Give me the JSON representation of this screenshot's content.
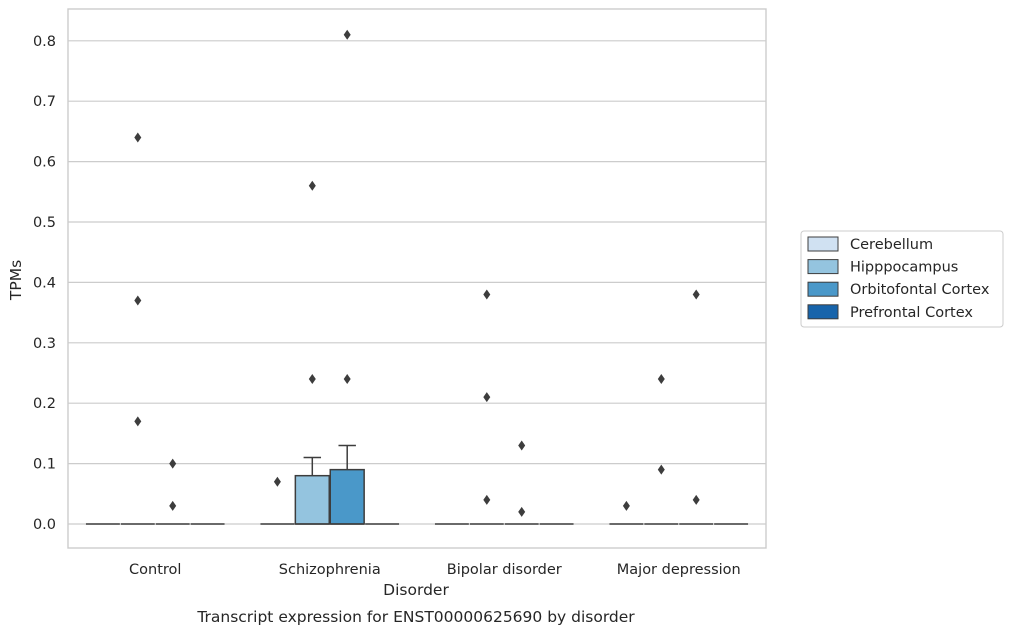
{
  "chart_data": {
    "type": "box",
    "title": "Transcript expression for ENST00000625690 by disorder",
    "xlabel": "Disorder",
    "ylabel": "TPMs",
    "ylim": [
      -0.04,
      0.85
    ],
    "yticks": [
      "0.0",
      "0.1",
      "0.2",
      "0.3",
      "0.4",
      "0.5",
      "0.6",
      "0.7",
      "0.8"
    ],
    "grid": "horizontal",
    "legend_position": "right",
    "categories": [
      "Control",
      "Schizophrenia",
      "Bipolar disorder",
      "Major depression"
    ],
    "series": [
      {
        "name": "Cerebellum",
        "color": "#d0e1f2",
        "boxes": [
          {
            "q1": 0,
            "median": 0,
            "q3": 0,
            "whisker_low": 0,
            "whisker_high": 0,
            "outliers": []
          },
          {
            "q1": 0,
            "median": 0,
            "q3": 0,
            "whisker_low": 0,
            "whisker_high": 0,
            "outliers": [
              0.07
            ]
          },
          {
            "q1": 0,
            "median": 0,
            "q3": 0,
            "whisker_low": 0,
            "whisker_high": 0,
            "outliers": []
          },
          {
            "q1": 0,
            "median": 0,
            "q3": 0,
            "whisker_low": 0,
            "whisker_high": 0,
            "outliers": [
              0.03
            ]
          }
        ]
      },
      {
        "name": "Hipppocampus",
        "color": "#94c4df",
        "boxes": [
          {
            "q1": 0,
            "median": 0,
            "q3": 0,
            "whisker_low": 0,
            "whisker_high": 0,
            "outliers": [
              0.64,
              0.37,
              0.17
            ]
          },
          {
            "q1": 0,
            "median": 0,
            "q3": 0.08,
            "whisker_low": 0,
            "whisker_high": 0.11,
            "outliers": [
              0.56,
              0.24
            ]
          },
          {
            "q1": 0,
            "median": 0,
            "q3": 0,
            "whisker_low": 0,
            "whisker_high": 0,
            "outliers": [
              0.38,
              0.21,
              0.04
            ]
          },
          {
            "q1": 0,
            "median": 0,
            "q3": 0,
            "whisker_low": 0,
            "whisker_high": 0,
            "outliers": [
              0.24,
              0.09
            ]
          }
        ]
      },
      {
        "name": "Orbitofontal Cortex",
        "color": "#4a98c9",
        "boxes": [
          {
            "q1": 0,
            "median": 0,
            "q3": 0,
            "whisker_low": 0,
            "whisker_high": 0,
            "outliers": [
              0.1,
              0.03
            ]
          },
          {
            "q1": 0,
            "median": 0,
            "q3": 0.09,
            "whisker_low": 0,
            "whisker_high": 0.13,
            "outliers": [
              0.81,
              0.24
            ]
          },
          {
            "q1": 0,
            "median": 0,
            "q3": 0,
            "whisker_low": 0,
            "whisker_high": 0,
            "outliers": [
              0.13,
              0.02
            ]
          },
          {
            "q1": 0,
            "median": 0,
            "q3": 0,
            "whisker_low": 0,
            "whisker_high": 0,
            "outliers": [
              0.38,
              0.04
            ]
          }
        ]
      },
      {
        "name": "Prefrontal Cortex",
        "color": "#1764ab",
        "boxes": [
          {
            "q1": 0,
            "median": 0,
            "q3": 0,
            "whisker_low": 0,
            "whisker_high": 0,
            "outliers": []
          },
          {
            "q1": 0,
            "median": 0,
            "q3": 0,
            "whisker_low": 0,
            "whisker_high": 0,
            "outliers": []
          },
          {
            "q1": 0,
            "median": 0,
            "q3": 0,
            "whisker_low": 0,
            "whisker_high": 0,
            "outliers": []
          },
          {
            "q1": 0,
            "median": 0,
            "q3": 0,
            "whisker_low": 0,
            "whisker_high": 0,
            "outliers": []
          }
        ]
      }
    ]
  }
}
